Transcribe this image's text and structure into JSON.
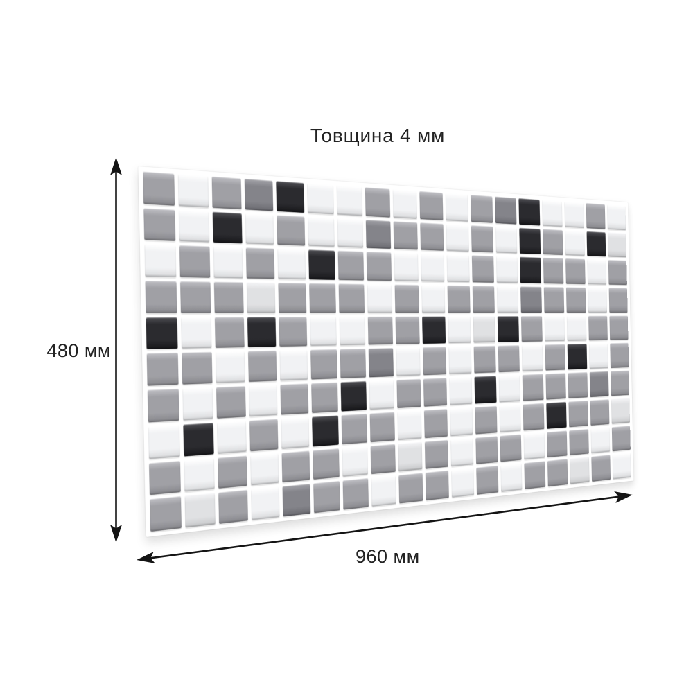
{
  "product_diagram": {
    "thickness_label": "Товщина 4 мм",
    "height_label": "480 мм",
    "width_label": "960 мм"
  },
  "arrows": {
    "color": "#141414"
  },
  "panel": {
    "rows": 10,
    "cols": 18,
    "grout_color": "#ffffff",
    "pattern": [
      "GWGDBWWGWGWGDBWWGW",
      "GWBWGWWDGGWGWBGWBL",
      "WGWGWBGGWWWGWBGGWG",
      "GGGLGGGWGWGGWDGGWG",
      "BWGBGWWGGBWLBGWWGG",
      "GGWGWGGDWGWGGWGBWG",
      "GWGWGGBWGGWBWGGGDG",
      "WBWGWBGGWGWGWGBGGL",
      "GWGWGGWGLGWGGWGGWG",
      "GLGWDGGWGGWGWGGLGW"
    ],
    "colors": {
      "W": {
        "base": "#f1f2f4",
        "hi": "#ffffff",
        "lo": "#d7d8da"
      },
      "L": {
        "base": "#e0e1e3",
        "hi": "#f5f5f7",
        "lo": "#c5c6c8"
      },
      "G": {
        "base": "#a0a0a5",
        "hi": "#c0c0c5",
        "lo": "#86868b"
      },
      "D": {
        "base": "#84848a",
        "hi": "#a2a2a8",
        "lo": "#6a6a70"
      },
      "B": {
        "base": "#2b2b2f",
        "hi": "#4f4f54",
        "lo": "#17171a"
      }
    }
  }
}
